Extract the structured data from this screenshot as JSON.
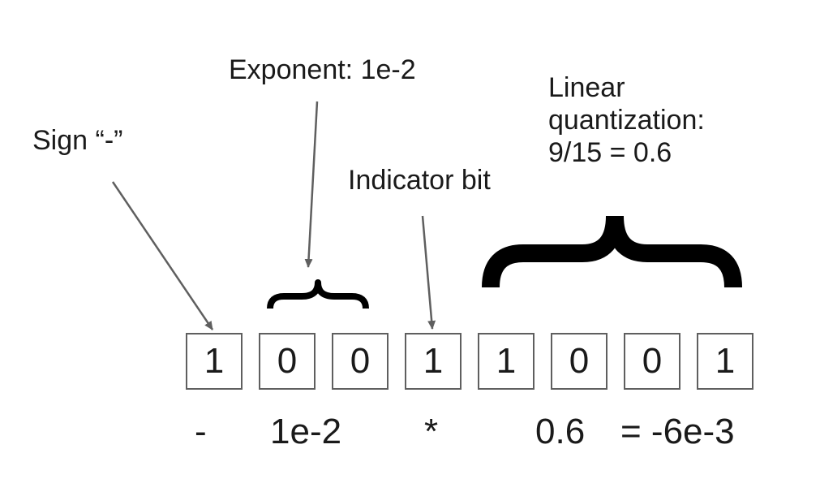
{
  "labels": {
    "exponent": "Exponent: 1e-2",
    "sign": "Sign “-”",
    "indicator": "Indicator bit",
    "linear": "Linear\nquantization:\n9/15 = 0.6"
  },
  "bits": [
    "1",
    "0",
    "0",
    "1",
    "1",
    "0",
    "0",
    "1"
  ],
  "bottom": {
    "sign": "-",
    "exponent": "1e-2",
    "times": "*",
    "mantissa": "0.6",
    "result": "= -6e-3"
  },
  "colors": {
    "arrow": "#5f5f5f",
    "brace": "#000000",
    "text": "#1a1a1a"
  }
}
